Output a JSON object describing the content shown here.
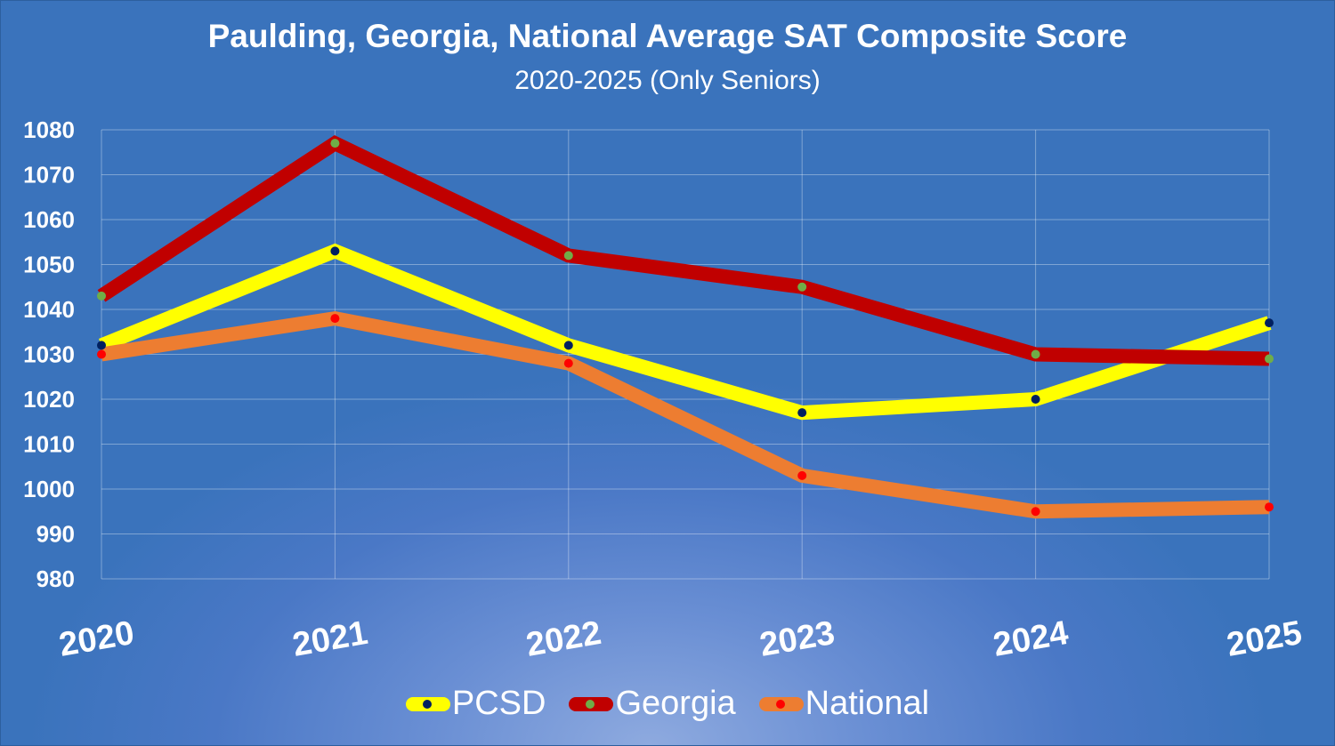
{
  "chart_data": {
    "type": "line",
    "title": "Paulding, Georgia, National Average SAT Composite Score",
    "subtitle": "2020-2025 (Only Seniors)",
    "xlabel": "",
    "ylabel": "",
    "categories": [
      "2020",
      "2021",
      "2022",
      "2023",
      "2024",
      "2025"
    ],
    "ylim": [
      980,
      1080
    ],
    "yticks": [
      980,
      990,
      1000,
      1010,
      1020,
      1030,
      1040,
      1050,
      1060,
      1070,
      1080
    ],
    "grid": true,
    "legend_position": "bottom",
    "series": [
      {
        "name": "PCSD",
        "values": [
          1032,
          1053,
          1032,
          1017,
          1020,
          1037
        ],
        "color": "#ffff00",
        "marker_color": "#002060"
      },
      {
        "name": "Georgia",
        "values": [
          1043,
          1077,
          1052,
          1045,
          1030,
          1029
        ],
        "color": "#c00000",
        "marker_color": "#70ad47"
      },
      {
        "name": "National",
        "values": [
          1030,
          1038,
          1028,
          1003,
          995,
          996
        ],
        "color": "#ed7d31",
        "marker_color": "#ff0000"
      }
    ]
  }
}
